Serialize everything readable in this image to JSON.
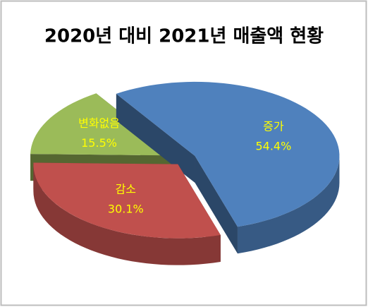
{
  "chart_data": {
    "type": "pie",
    "title": "2020년 대비 2021년 매출액 현황",
    "categories": [
      "증가",
      "감소",
      "변화없음"
    ],
    "values": [
      54.4,
      30.1,
      15.5
    ],
    "value_labels": [
      "54.4%",
      "30.1%",
      "15.5%"
    ],
    "colors": [
      "#4f81bd",
      "#c0504d",
      "#9bbb59"
    ],
    "label_color": "#ffff00"
  }
}
